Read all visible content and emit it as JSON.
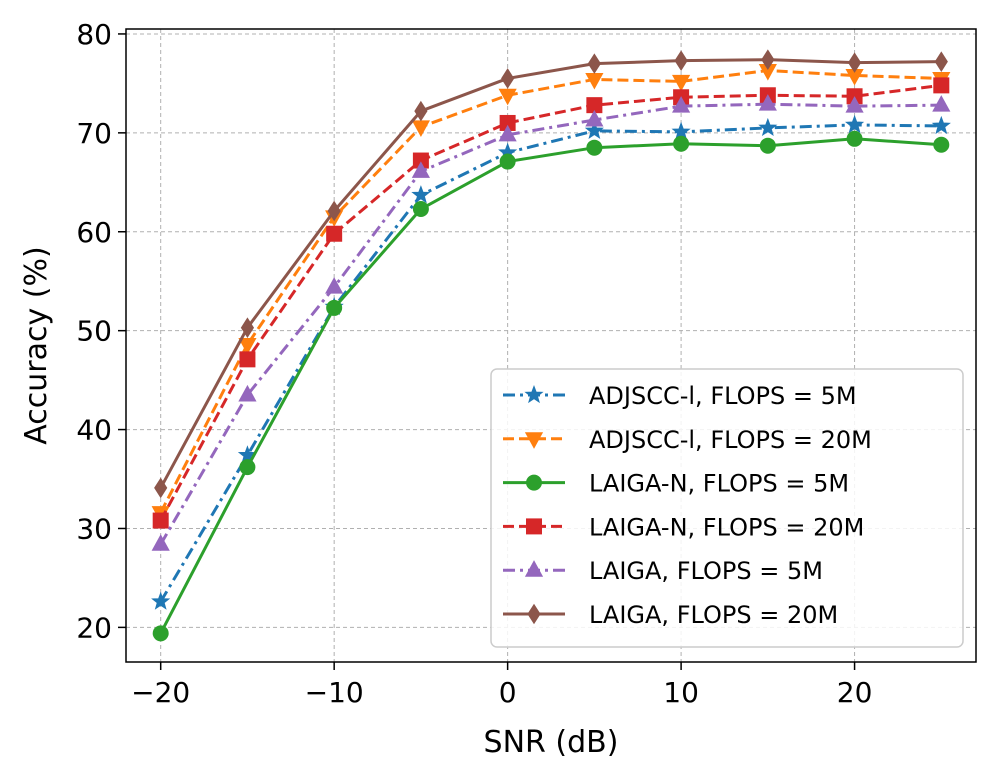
{
  "chart_data": {
    "type": "line",
    "title": "",
    "xlabel": "SNR (dB)",
    "ylabel": "Accuracy (%)",
    "xlim": [
      -22,
      27
    ],
    "ylim": [
      16.5,
      80.5
    ],
    "xticks": [
      -20,
      -10,
      0,
      10,
      20
    ],
    "xtick_labels": [
      "−20",
      "−10",
      "0",
      "10",
      "20"
    ],
    "yticks": [
      20,
      30,
      40,
      50,
      60,
      70,
      80
    ],
    "ytick_labels": [
      "20",
      "30",
      "40",
      "50",
      "60",
      "70",
      "80"
    ],
    "grid": true,
    "legend_position": "lower-right",
    "x": [
      -20,
      -15,
      -10,
      -5,
      0,
      5,
      10,
      15,
      20,
      25
    ],
    "series": [
      {
        "name": "ADJSCC-l, FLOPS = 5M",
        "color": "#1f77b4",
        "linestyle": "dashdot",
        "marker": "star",
        "values": [
          22.6,
          37.4,
          52.4,
          63.7,
          68.0,
          70.2,
          70.1,
          70.5,
          70.8,
          70.7
        ]
      },
      {
        "name": "ADJSCC-l, FLOPS = 20M",
        "color": "#ff7f0e",
        "linestyle": "dashed",
        "marker": "triangle-down",
        "values": [
          31.6,
          48.6,
          61.5,
          70.6,
          73.8,
          75.4,
          75.2,
          76.3,
          75.8,
          75.5
        ]
      },
      {
        "name": "LAIGA-N, FLOPS = 5M",
        "color": "#2ca02c",
        "linestyle": "solid",
        "marker": "circle",
        "values": [
          19.4,
          36.2,
          52.3,
          62.3,
          67.1,
          68.5,
          68.9,
          68.7,
          69.4,
          68.8
        ]
      },
      {
        "name": "LAIGA-N, FLOPS = 20M",
        "color": "#d62728",
        "linestyle": "dashed",
        "marker": "square",
        "values": [
          30.8,
          47.1,
          59.8,
          67.2,
          71.0,
          72.8,
          73.6,
          73.8,
          73.7,
          74.8
        ]
      },
      {
        "name": "LAIGA, FLOPS = 5M",
        "color": "#9467bd",
        "linestyle": "dashdot",
        "marker": "triangle-up",
        "values": [
          28.4,
          43.5,
          54.4,
          66.1,
          69.8,
          71.3,
          72.7,
          72.9,
          72.7,
          72.8
        ]
      },
      {
        "name": "LAIGA, FLOPS = 20M",
        "color": "#8c564b",
        "linestyle": "solid",
        "marker": "diamond",
        "values": [
          34.1,
          50.3,
          62.1,
          72.2,
          75.5,
          77.0,
          77.3,
          77.4,
          77.1,
          77.2
        ]
      }
    ]
  }
}
